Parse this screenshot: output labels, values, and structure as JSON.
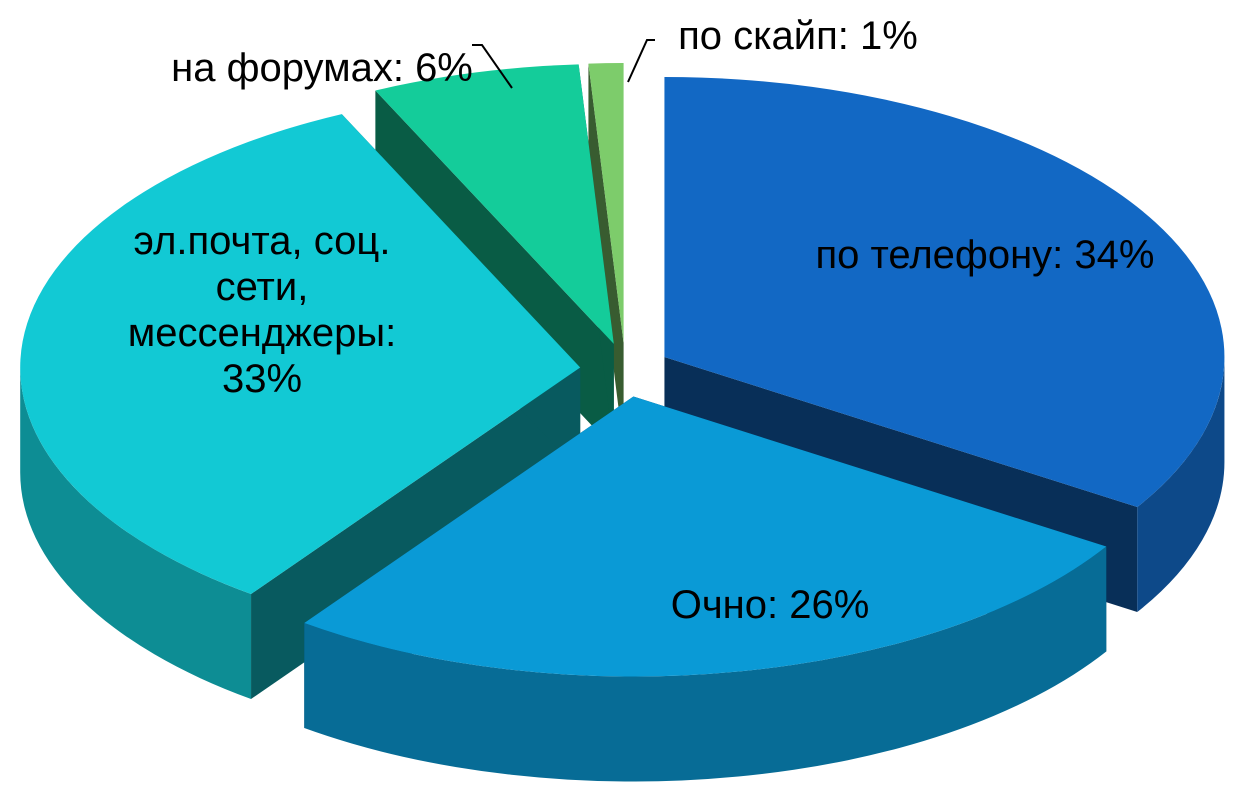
{
  "chart_data": {
    "type": "pie",
    "categories": [
      "по телефону:",
      "Очно:",
      "эл.почта, соц. сети, мессенджеры:",
      "на форумах:",
      "по скайп:"
    ],
    "values": [
      34,
      26,
      33,
      6,
      1
    ],
    "value_labels": [
      "34%",
      "26%",
      "33%",
      "6%",
      "1%"
    ],
    "colors": [
      "#1268c4",
      "#0a9ad6",
      "#12c9d4",
      "#14cc9a",
      "#7dcc6b"
    ]
  }
}
